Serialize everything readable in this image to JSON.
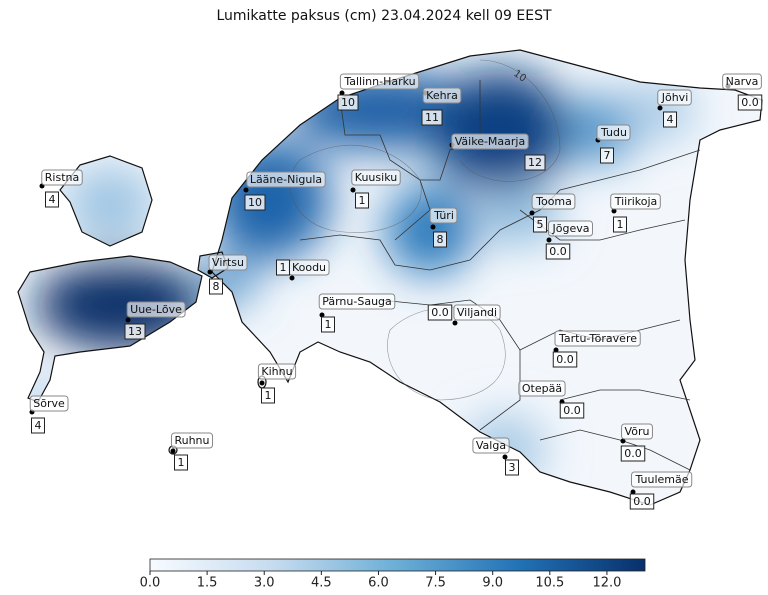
{
  "title": "Lumikatte paksus (cm) 23.04.2024 kell 09 EEST",
  "contour_label": "10",
  "stations": [
    {
      "name": "Tallinn-Harku",
      "value": 10
    },
    {
      "name": "Kehra",
      "value": 11
    },
    {
      "name": "Narva",
      "value": 0,
      "value_label": "0.0"
    },
    {
      "name": "Jõhvi",
      "value": 4
    },
    {
      "name": "Väike-Maarja",
      "value": 12
    },
    {
      "name": "Tudu",
      "value": 7
    },
    {
      "name": "Ristna",
      "value": 4
    },
    {
      "name": "Lääne-Nigula",
      "value": 10
    },
    {
      "name": "Kuusiku",
      "value": 1
    },
    {
      "name": "Türi",
      "value": 8
    },
    {
      "name": "Tooma",
      "value": 5
    },
    {
      "name": "Jõgeva",
      "value": 0,
      "value_label": "0.0"
    },
    {
      "name": "Tiirikoja",
      "value": 1
    },
    {
      "name": "Virtsu",
      "value": 8
    },
    {
      "name": "Koodu",
      "value": 1
    },
    {
      "name": "Uue-Lõve",
      "value": 13
    },
    {
      "name": "Pärnu-Sauga",
      "value": 1
    },
    {
      "name": "Viljandi",
      "value": 0,
      "value_label": "0.0"
    },
    {
      "name": "Tartu-Tõravere",
      "value": 0,
      "value_label": "0.0"
    },
    {
      "name": "Kihnu",
      "value": 1
    },
    {
      "name": "Otepää",
      "value": 0,
      "value_label": "0.0"
    },
    {
      "name": "Sõrve",
      "value": 4
    },
    {
      "name": "Võru",
      "value": 0,
      "value_label": "0.0"
    },
    {
      "name": "Ruhnu",
      "value": 1
    },
    {
      "name": "Valga",
      "value": 3
    },
    {
      "name": "Tuulemäe",
      "value": 0,
      "value_label": "0.0"
    }
  ],
  "colorbar": {
    "clim": [
      0,
      13
    ],
    "colors": [
      "#f7fbff",
      "#c6dbef",
      "#6baed6",
      "#2171b5",
      "#08306b"
    ],
    "ticks": [
      {
        "value": 0,
        "label": "0.0"
      },
      1.5,
      {
        "value": 3,
        "label": "3.0"
      },
      4.5,
      {
        "value": 6,
        "label": "6.0"
      },
      7.5,
      {
        "value": 9,
        "label": "9.0"
      },
      10.5,
      {
        "value": 12,
        "label": "12.0"
      }
    ]
  }
}
